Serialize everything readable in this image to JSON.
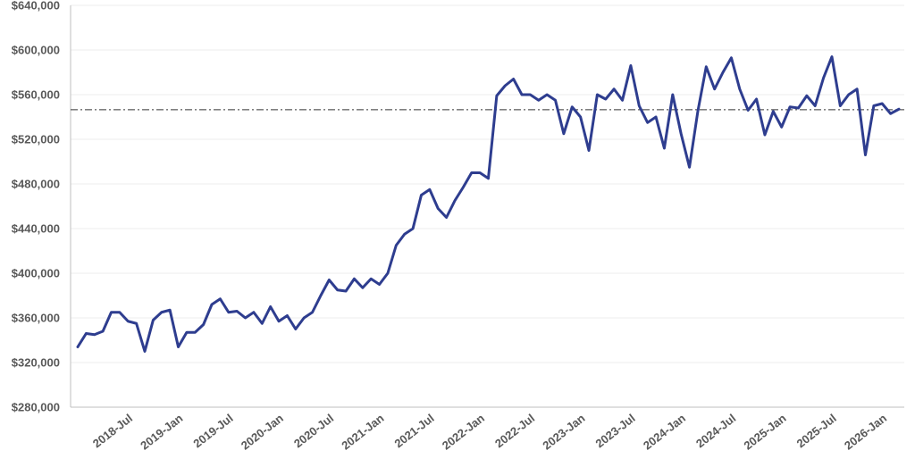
{
  "chart_data": {
    "type": "line",
    "title": "",
    "xlabel": "",
    "ylabel": "",
    "ylim": [
      280000,
      640000
    ],
    "y_ticks": [
      "$280,000",
      "$320,000",
      "$360,000",
      "$400,000",
      "$440,000",
      "$480,000",
      "$520,000",
      "$560,000",
      "$600,000",
      "$640,000"
    ],
    "x_ticks": [
      "2018-Jul",
      "2019-Jan",
      "2019-Jul",
      "2020-Jan",
      "2020-Jul",
      "2021-Jan",
      "2021-Jul",
      "2022-Jan",
      "2022-Jul",
      "2023-Jan",
      "2023-Jul",
      "2024-Jan",
      "2024-Jul",
      "2025-Jan",
      "2025-Jul",
      "2026-Jan"
    ],
    "x_start": "2018-Jan",
    "x_end": "2026-May",
    "series_color": "#2e3d8f",
    "reference_line": {
      "value": 546500,
      "color": "#333333",
      "style": "dash-dot"
    },
    "series": [
      {
        "values": [
          334000,
          346000,
          345000,
          348000,
          365000,
          365000,
          357000,
          355000,
          330000,
          358000,
          365000,
          367000,
          334000,
          347000,
          347000,
          354000,
          372000,
          377000,
          365000,
          366000,
          360000,
          365000,
          355000,
          370000,
          357000,
          362000,
          350000,
          360000,
          365000,
          380000,
          394000,
          385000,
          384000,
          395000,
          387000,
          395000,
          390000,
          400000,
          425000,
          435000,
          440000,
          470000,
          475000,
          458000,
          450000,
          465000,
          477000,
          490000,
          490000,
          485000,
          559000,
          568000,
          574000,
          560000,
          560000,
          555000,
          560000,
          555000,
          525000,
          549000,
          540000,
          510000,
          560000,
          556000,
          565000,
          555000,
          586000,
          550000,
          535000,
          540000,
          512000,
          560000,
          525000,
          495000,
          545000,
          585000,
          565000,
          580000,
          593000,
          565000,
          546000,
          556000,
          524000,
          545000,
          531000,
          549000,
          548000,
          559000,
          550000,
          575000,
          594000,
          550000,
          560000,
          565000,
          506000,
          550000,
          552000,
          543000,
          547000
        ]
      }
    ]
  }
}
